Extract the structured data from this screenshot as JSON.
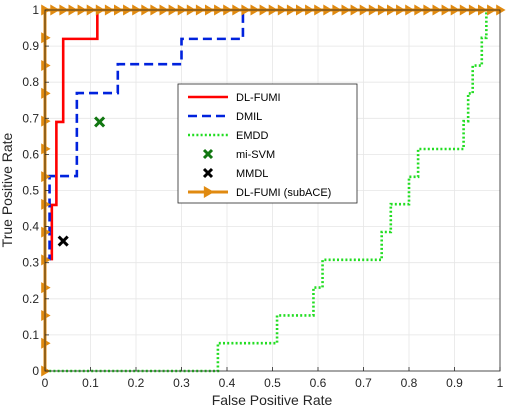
{
  "chart_data": {
    "type": "line",
    "xlabel": "False Positive Rate",
    "ylabel": "True Positive Rate",
    "xlim": [
      0,
      1
    ],
    "ylim": [
      0,
      1
    ],
    "xticks": [
      "0",
      "0.1",
      "0.2",
      "0.3",
      "0.4",
      "0.5",
      "0.6",
      "0.7",
      "0.8",
      "0.9",
      "1"
    ],
    "yticks": [
      "0",
      "0.1",
      "0.2",
      "0.3",
      "0.4",
      "0.5",
      "0.6",
      "0.7",
      "0.8",
      "0.9",
      "1"
    ],
    "grid": true,
    "legend_placement": "center",
    "series": [
      {
        "name": "DL-FUMI",
        "style": "solid",
        "color": "#ff0000",
        "points": [
          [
            0,
            0
          ],
          [
            0,
            0.31
          ],
          [
            0.015,
            0.31
          ],
          [
            0.015,
            0.46
          ],
          [
            0.025,
            0.46
          ],
          [
            0.025,
            0.69
          ],
          [
            0.04,
            0.69
          ],
          [
            0.04,
            0.92
          ],
          [
            0.115,
            0.92
          ],
          [
            0.115,
            1
          ],
          [
            1,
            1
          ]
        ]
      },
      {
        "name": "DMIL",
        "style": "dashed",
        "color": "#0022dd",
        "points": [
          [
            0,
            0
          ],
          [
            0,
            0.31
          ],
          [
            0.01,
            0.31
          ],
          [
            0.01,
            0.54
          ],
          [
            0.07,
            0.54
          ],
          [
            0.07,
            0.77
          ],
          [
            0.16,
            0.77
          ],
          [
            0.16,
            0.85
          ],
          [
            0.3,
            0.85
          ],
          [
            0.3,
            0.92
          ],
          [
            0.435,
            0.92
          ],
          [
            0.435,
            1
          ],
          [
            1,
            1
          ]
        ]
      },
      {
        "name": "EMDD",
        "style": "dotted",
        "color": "#22dd22",
        "points": [
          [
            0,
            0
          ],
          [
            0.38,
            0
          ],
          [
            0.38,
            0.077
          ],
          [
            0.51,
            0.077
          ],
          [
            0.51,
            0.154
          ],
          [
            0.59,
            0.154
          ],
          [
            0.59,
            0.231
          ],
          [
            0.61,
            0.231
          ],
          [
            0.61,
            0.308
          ],
          [
            0.74,
            0.308
          ],
          [
            0.74,
            0.385
          ],
          [
            0.76,
            0.385
          ],
          [
            0.76,
            0.462
          ],
          [
            0.8,
            0.462
          ],
          [
            0.8,
            0.538
          ],
          [
            0.82,
            0.538
          ],
          [
            0.82,
            0.615
          ],
          [
            0.92,
            0.615
          ],
          [
            0.92,
            0.692
          ],
          [
            0.93,
            0.692
          ],
          [
            0.93,
            0.769
          ],
          [
            0.94,
            0.769
          ],
          [
            0.94,
            0.846
          ],
          [
            0.96,
            0.846
          ],
          [
            0.96,
            0.923
          ],
          [
            0.97,
            0.923
          ],
          [
            0.97,
            1
          ],
          [
            1,
            1
          ]
        ]
      },
      {
        "name": "mi-SVM",
        "style": "marker",
        "marker": "x",
        "color": "#117711",
        "points": [
          [
            0.12,
            0.69
          ]
        ]
      },
      {
        "name": "MMDL",
        "style": "marker",
        "marker": "x",
        "color": "#000000",
        "points": [
          [
            0.04,
            0.36
          ]
        ]
      },
      {
        "name": "DL-FUMI (subACE)",
        "style": "solid-triangle",
        "color": "#e08a10",
        "points": [
          [
            0,
            0
          ],
          [
            0,
            1
          ],
          [
            1,
            1
          ]
        ],
        "markers": [
          [
            0,
            0
          ],
          [
            0,
            0.0769
          ],
          [
            0,
            0.1538
          ],
          [
            0,
            0.2308
          ],
          [
            0,
            0.3077
          ],
          [
            0,
            0.3846
          ],
          [
            0,
            0.4615
          ],
          [
            0,
            0.5385
          ],
          [
            0,
            0.6154
          ],
          [
            0,
            0.6923
          ],
          [
            0,
            0.7692
          ],
          [
            0,
            0.8462
          ],
          [
            0,
            0.9231
          ],
          [
            0,
            1
          ],
          [
            0.02,
            1
          ],
          [
            0.04,
            1
          ],
          [
            0.06,
            1
          ],
          [
            0.08,
            1
          ],
          [
            0.1,
            1
          ],
          [
            0.12,
            1
          ],
          [
            0.14,
            1
          ],
          [
            0.16,
            1
          ],
          [
            0.18,
            1
          ],
          [
            0.2,
            1
          ],
          [
            0.22,
            1
          ],
          [
            0.24,
            1
          ],
          [
            0.26,
            1
          ],
          [
            0.28,
            1
          ],
          [
            0.3,
            1
          ],
          [
            0.32,
            1
          ],
          [
            0.34,
            1
          ],
          [
            0.36,
            1
          ],
          [
            0.38,
            1
          ],
          [
            0.4,
            1
          ],
          [
            0.42,
            1
          ],
          [
            0.44,
            1
          ],
          [
            0.46,
            1
          ],
          [
            0.48,
            1
          ],
          [
            0.5,
            1
          ],
          [
            0.52,
            1
          ],
          [
            0.54,
            1
          ],
          [
            0.56,
            1
          ],
          [
            0.58,
            1
          ],
          [
            0.6,
            1
          ],
          [
            0.62,
            1
          ],
          [
            0.64,
            1
          ],
          [
            0.66,
            1
          ],
          [
            0.68,
            1
          ],
          [
            0.7,
            1
          ],
          [
            0.72,
            1
          ],
          [
            0.74,
            1
          ],
          [
            0.76,
            1
          ],
          [
            0.78,
            1
          ],
          [
            0.8,
            1
          ],
          [
            0.82,
            1
          ],
          [
            0.84,
            1
          ],
          [
            0.86,
            1
          ],
          [
            0.88,
            1
          ],
          [
            0.9,
            1
          ],
          [
            0.92,
            1
          ],
          [
            0.94,
            1
          ],
          [
            0.96,
            1
          ],
          [
            0.98,
            1
          ],
          [
            1,
            1
          ]
        ]
      }
    ]
  }
}
